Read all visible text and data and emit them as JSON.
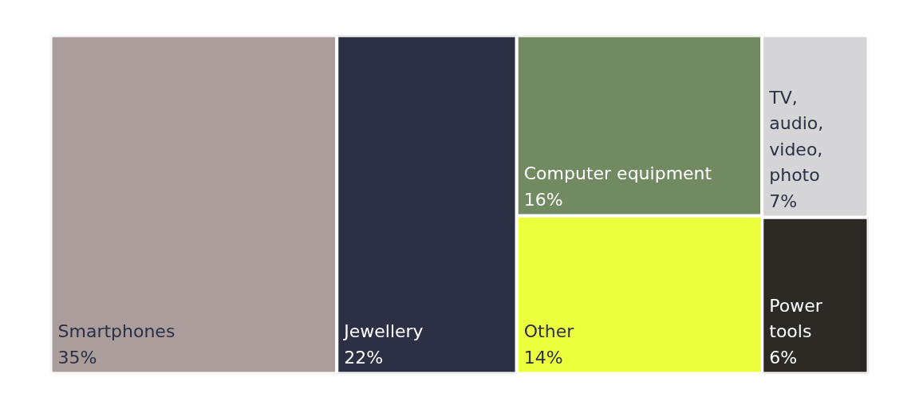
{
  "chart_data": {
    "type": "other",
    "categories": [
      "Smartphones",
      "Jewellery",
      "Computer equipment",
      "Other",
      "TV, audio, video, photo",
      "Power tools"
    ],
    "values": [
      35,
      22,
      16,
      14,
      7,
      6
    ],
    "value_labels": [
      "35%",
      "22%",
      "16%",
      "14%",
      "7%",
      "6%"
    ],
    "colors": [
      "#ab9d9c",
      "#2b3044",
      "#718a62",
      "#ecff3c",
      "#d5d5d8",
      "#2d2925"
    ]
  }
}
